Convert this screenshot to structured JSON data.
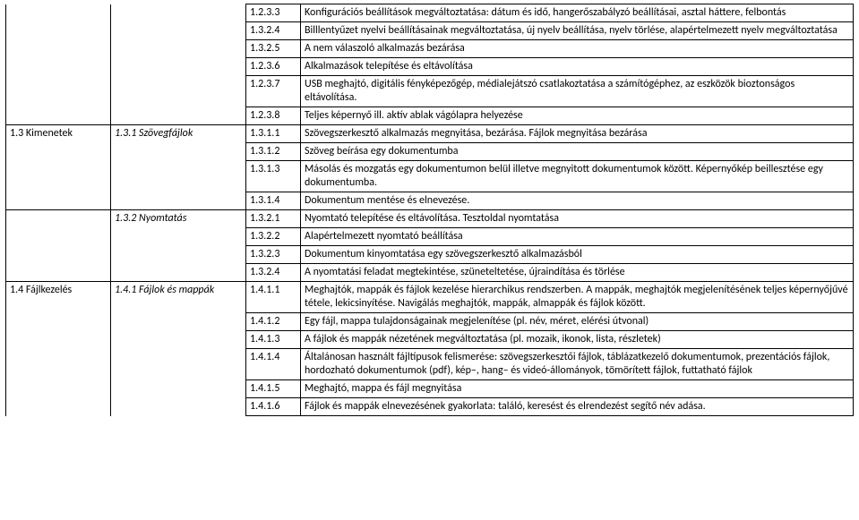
{
  "rows": [
    {
      "a": "",
      "b": "",
      "c": "1.2.3.3",
      "d": "Konfigurációs beállítások megváltoztatása: dátum és idő, hangerőszabályzó beállításai, asztal háttere, felbontás",
      "aNB": true,
      "bNB": true,
      "aNT": true,
      "bNT": true
    },
    {
      "a": "",
      "b": "",
      "c": "1.3.2.4",
      "d": "Billlentyűzet nyelvi beállításainak megváltoztatása, új nyelv beállítása, nyelv törlése, alapértelmezett nyelv megváltoztatása",
      "aNB": true,
      "bNB": true,
      "aNT": true,
      "bNT": true
    },
    {
      "a": "",
      "b": "",
      "c": "1.3.2.5",
      "d": "A nem válaszoló alkalmazás bezárása",
      "aNB": true,
      "bNB": true,
      "aNT": true,
      "bNT": true
    },
    {
      "a": "",
      "b": "",
      "c": "1.2.3.6",
      "d": "Alkalmazások telepítése és eltávolítása",
      "aNB": true,
      "bNB": true,
      "aNT": true,
      "bNT": true
    },
    {
      "a": "",
      "b": "",
      "c": "1.2.3.7",
      "d": "USB meghajtó, digitális fényképezőgép, médialejátszó csatlakoztatása a számítógéphez, az eszközök bioztonságos eltávolítása.",
      "aNB": true,
      "bNB": true,
      "aNT": true,
      "bNT": true
    },
    {
      "a": "",
      "b": "",
      "c": "1.2.3.8",
      "d": "Teljes képernyő ill. aktív ablak vágólapra helyezése",
      "aNT": true,
      "bNT": true
    },
    {
      "a": "1.3 Kimenetek",
      "b": "1.3.1 Szövegfájlok",
      "bItalic": true,
      "c": "1.3.1.1",
      "d": "Szövegszerkesztő alkalmazás megnyitása, bezárása. Fájlok megnyitása bezárása",
      "aNB": true,
      "bNB": true
    },
    {
      "a": "",
      "b": "",
      "c": "1.3.1.2",
      "d": "Szöveg beírása egy dokumentumba",
      "aNB": true,
      "bNB": true,
      "aNT": true,
      "bNT": true
    },
    {
      "a": "",
      "b": "",
      "c": "1.3.1.3",
      "d": "Másolás és mozgatás egy dokumentumon belül illetve megnyitott dokumentumok között. Képernyőkép beillesztése egy dokumentumba.",
      "aNB": true,
      "bNB": true,
      "aNT": true,
      "bNT": true
    },
    {
      "a": "",
      "b": "",
      "c": "1.3.1.4",
      "d": "Dokumentum mentése és elnevezése.",
      "aNT": true,
      "bNB": true,
      "bNT": true
    },
    {
      "a": "",
      "b": "1.3.2 Nyomtatás",
      "bItalic": true,
      "c": "1.3.2.1",
      "d": "Nyomtató telepítése és eltávolítása. Tesztoldal nyomtatása",
      "aNB": true,
      "aNT": true,
      "bNB": true
    },
    {
      "a": "",
      "b": "",
      "c": "1.3.2.2",
      "d": "Alapértelmezett nyomtató beállítása",
      "aNB": true,
      "bNB": true,
      "aNT": true,
      "bNT": true
    },
    {
      "a": "",
      "b": "",
      "c": "1.3.2.3",
      "d": "Dokumentum kinyomtatása egy szövegszerkesztő alkalmazásból",
      "aNB": true,
      "bNB": true,
      "aNT": true,
      "bNT": true
    },
    {
      "a": "",
      "b": "",
      "c": "1.3.2.4",
      "d": "A nyomtatási feladat megtekintése, szüneteltetése, újraindítása és törlése",
      "aNT": true,
      "bNT": true
    },
    {
      "a": "1.4 Fájlkezelés",
      "b": "1.4.1 Fájlok és mappák",
      "bItalic": true,
      "c": "1.4.1.1",
      "d": "Meghajtók, mappák és fájlok kezelése hierarchikus rendszerben. A mappák, meghajtók megjelenítésének teljes képernyőjűvé tétele, lekicsinyítése. Navigálás meghajtók, mappák, almappák és fájlok között.",
      "aNB": true,
      "bNB": true
    },
    {
      "a": "",
      "b": "",
      "c": "1.4.1.2",
      "d": "Egy fájl, mappa tulajdonságainak megjelenítése (pl. név, méret, elérési útvonal)",
      "aNB": true,
      "bNB": true,
      "aNT": true,
      "bNT": true
    },
    {
      "a": "",
      "b": "",
      "c": "1.4.1.3",
      "d": "A fájlok és mappák nézetének megváltoztatása (pl. mozaik, ikonok, lista, részletek)",
      "aNB": true,
      "bNB": true,
      "aNT": true,
      "bNT": true
    },
    {
      "a": "",
      "b": "",
      "c": "1.4.1.4",
      "d": "Általánosan használt fájltípusok felismerése: szövegszerkesztői fájlok, táblázatkezelő dokumentumok, prezentációs fájlok, hordozható dokumentumok (pdf), kép–, hang– és videó-állományok,  tömörített fájlok, futtatható fájlok",
      "aNB": true,
      "bNB": true,
      "aNT": true,
      "bNT": true
    },
    {
      "a": "",
      "b": "",
      "c": "1.4.1.5",
      "d": "Meghajtó, mappa és fájl megnyitása",
      "aNB": true,
      "bNB": true,
      "aNT": true,
      "bNT": true
    },
    {
      "a": "",
      "b": "",
      "c": "1.4.1.6",
      "d": "Fájlok és mappák elnevezésének gyakorlata: találó, keresést és elrendezést segítő név adása.",
      "aNB": true,
      "bNB": true,
      "aNT": true,
      "bNT": true
    }
  ]
}
